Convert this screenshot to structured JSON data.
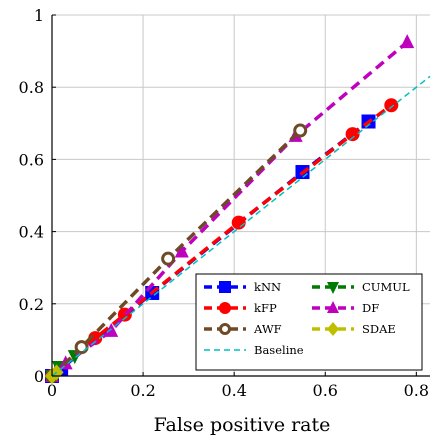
{
  "chart_data": {
    "type": "line",
    "title": "",
    "xlabel": "False positive rate",
    "ylabel": "",
    "xlim": [
      0,
      0.83
    ],
    "ylim": [
      0,
      1
    ],
    "grid": true,
    "legend_position": "bottom-right",
    "x_ticks": [
      "0",
      "0.2",
      "0.4",
      "0.6",
      "0.8"
    ],
    "y_ticks": [
      "0",
      "0.2",
      "0.4",
      "0.6",
      "0.8",
      "1"
    ],
    "legend_columns": 2,
    "series": [
      {
        "name": "kNN",
        "color": "#0000ff",
        "marker": "square",
        "x": [
          0,
          0.02,
          0.22,
          0.55,
          0.695
        ],
        "y": [
          0,
          0.02,
          0.23,
          0.565,
          0.705
        ]
      },
      {
        "name": "CUMUL",
        "color": "#007a00",
        "marker": "triangle-down",
        "x": [
          0,
          0.015,
          0.05
        ],
        "y": [
          0,
          0.025,
          0.055
        ]
      },
      {
        "name": "kFP",
        "color": "#ff0000",
        "marker": "circle",
        "x": [
          0,
          0.095,
          0.16,
          0.41,
          0.66,
          0.745
        ],
        "y": [
          0,
          0.105,
          0.17,
          0.425,
          0.67,
          0.75
        ]
      },
      {
        "name": "DF",
        "color": "#bf00bf",
        "marker": "triangle-up",
        "x": [
          0,
          0.03,
          0.13,
          0.285,
          0.535,
          0.78
        ],
        "y": [
          0,
          0.035,
          0.125,
          0.345,
          0.665,
          0.925
        ]
      },
      {
        "name": "AWF",
        "color": "#6e4a26",
        "marker": "circle-open",
        "x": [
          0,
          0.065,
          0.255,
          0.545
        ],
        "y": [
          0,
          0.08,
          0.325,
          0.68
        ]
      },
      {
        "name": "SDAE",
        "color": "#bfbf00",
        "marker": "diamond",
        "x": [
          0,
          0.01
        ],
        "y": [
          0,
          0.01
        ]
      },
      {
        "name": "Baseline",
        "color": "#00bfbf",
        "marker": "none",
        "x": [
          0,
          0.83
        ],
        "y": [
          0,
          0.83
        ]
      }
    ]
  }
}
